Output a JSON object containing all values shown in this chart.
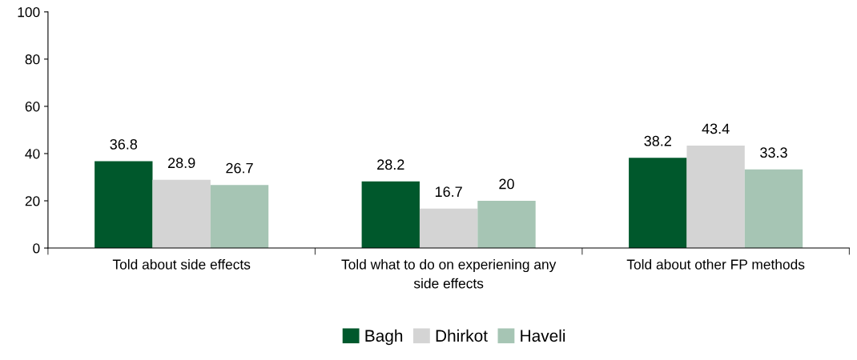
{
  "chart_data": {
    "type": "bar",
    "categories": [
      "Told about side effects",
      "Told what to do on experiening any side effects",
      "Told about other FP methods"
    ],
    "series": [
      {
        "name": "Bagh",
        "color": "#00582c",
        "values": [
          36.8,
          28.2,
          38.2
        ]
      },
      {
        "name": "Dhirkot",
        "color": "#d4d4d4",
        "values": [
          28.9,
          16.7,
          43.4
        ]
      },
      {
        "name": "Haveli",
        "color": "#a6c5b4",
        "values": [
          26.7,
          20,
          33.3
        ]
      }
    ],
    "ylim": [
      0,
      100
    ],
    "yticks": [
      0,
      20,
      40,
      60,
      80,
      100
    ],
    "data_labels": true,
    "grid": false,
    "legend": "bottom"
  }
}
